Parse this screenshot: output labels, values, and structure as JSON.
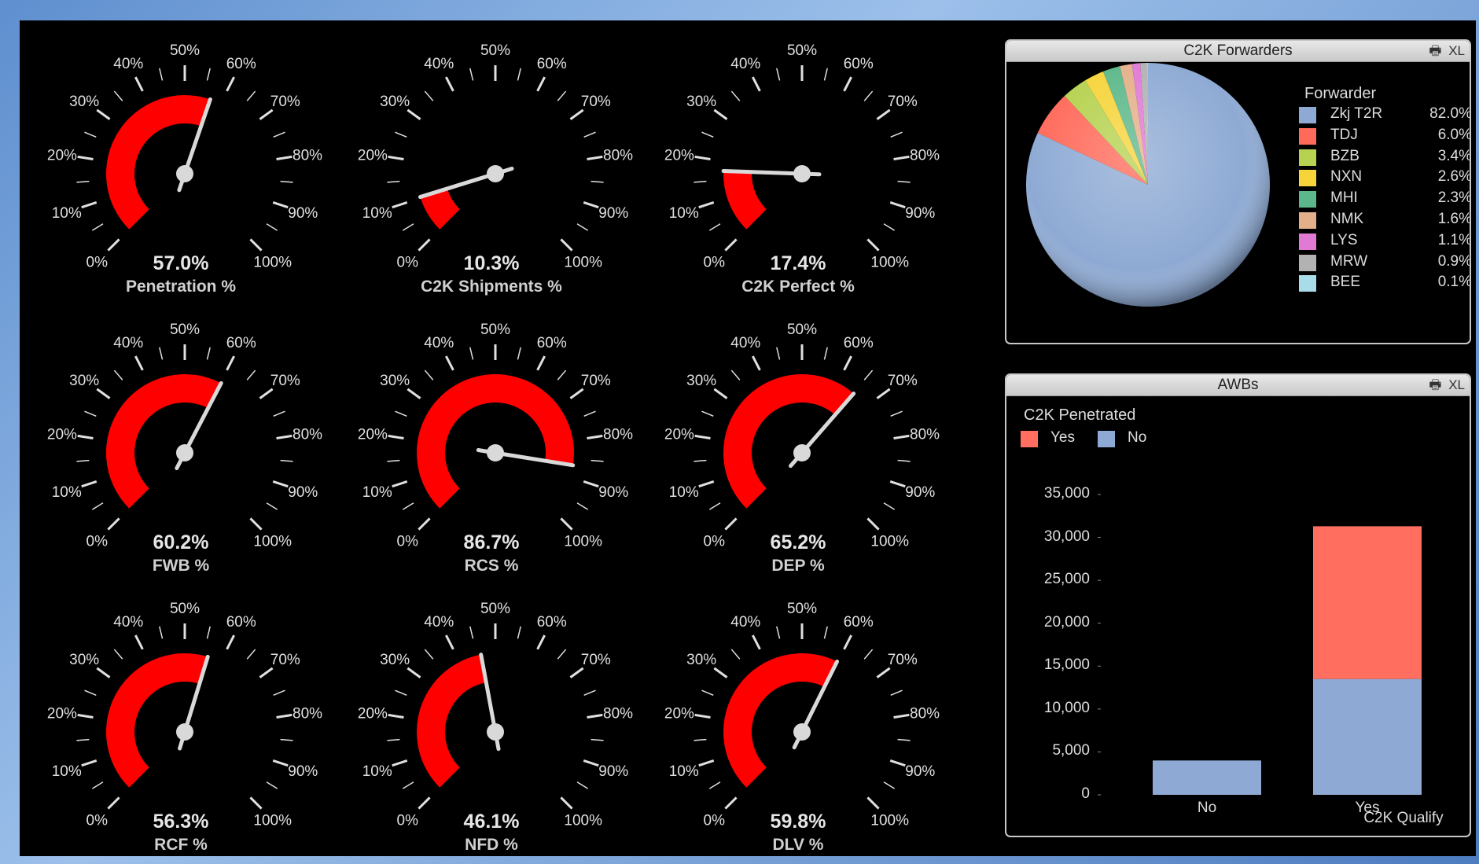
{
  "gauges": [
    {
      "name": "Penetration %",
      "value_text": "57.0%",
      "value": 57.0
    },
    {
      "name": "C2K Shipments %",
      "value_text": "10.3%",
      "value": 10.3
    },
    {
      "name": "C2K Perfect %",
      "value_text": "17.4%",
      "value": 17.4
    },
    {
      "name": "FWB %",
      "value_text": "60.2%",
      "value": 60.2
    },
    {
      "name": "RCS %",
      "value_text": "86.7%",
      "value": 86.7
    },
    {
      "name": "DEP %",
      "value_text": "65.2%",
      "value": 65.2
    },
    {
      "name": "RCF %",
      "value_text": "56.3%",
      "value": 56.3
    },
    {
      "name": "NFD %",
      "value_text": "46.1%",
      "value": 46.1
    },
    {
      "name": "DLV %",
      "value_text": "59.8%",
      "value": 59.8
    }
  ],
  "gauge_ticks": [
    "0%",
    "10%",
    "20%",
    "30%",
    "40%",
    "50%",
    "60%",
    "70%",
    "80%",
    "90%",
    "100%"
  ],
  "colors": {
    "gauge_fill": "#ff0000",
    "needle": "#d9d9d9",
    "background": "#000000"
  },
  "forwarders_panel": {
    "title": "C2K Forwarders",
    "icons": [
      "print-icon",
      "XL"
    ],
    "legend_title": "Forwarder",
    "items": [
      {
        "name": "Zkj T2R",
        "pct": "82.0%",
        "value": 82.0,
        "color": "#8eaad4"
      },
      {
        "name": "TDJ",
        "pct": "6.0%",
        "value": 6.0,
        "color": "#ff6a5a"
      },
      {
        "name": "BZB",
        "pct": "3.4%",
        "value": 3.4,
        "color": "#b6d250"
      },
      {
        "name": "NXN",
        "pct": "2.6%",
        "value": 2.6,
        "color": "#f6d43a"
      },
      {
        "name": "MHI",
        "pct": "2.3%",
        "value": 2.3,
        "color": "#5cb88a"
      },
      {
        "name": "NMK",
        "pct": "1.6%",
        "value": 1.6,
        "color": "#e4b08a"
      },
      {
        "name": "LYS",
        "pct": "1.1%",
        "value": 1.1,
        "color": "#e07ad4"
      },
      {
        "name": "MRW",
        "pct": "0.9%",
        "value": 0.9,
        "color": "#b2b2b2"
      },
      {
        "name": "BEE",
        "pct": "0.1%",
        "value": 0.1,
        "color": "#a8dce8"
      }
    ]
  },
  "awbs_panel": {
    "title": "AWBs",
    "icons": [
      "print-icon",
      "XL"
    ],
    "legend_title": "C2K Penetrated",
    "legend": [
      {
        "name": "Yes",
        "color": "#ff6e5e"
      },
      {
        "name": "No",
        "color": "#8eaad4"
      }
    ],
    "xlabel": "C2K Qualify"
  },
  "chart_data": [
    {
      "type": "pie",
      "title": "C2K Forwarders",
      "legend_title": "Forwarder",
      "categories": [
        "Zkj T2R",
        "TDJ",
        "BZB",
        "NXN",
        "MHI",
        "NMK",
        "LYS",
        "MRW",
        "BEE"
      ],
      "values": [
        82.0,
        6.0,
        3.4,
        2.6,
        2.3,
        1.6,
        1.1,
        0.9,
        0.1
      ]
    },
    {
      "type": "bar",
      "stacked": true,
      "title": "AWBs",
      "categories": [
        "No",
        "Yes"
      ],
      "series": [
        {
          "name": "No",
          "values": [
            4000,
            13500
          ]
        },
        {
          "name": "Yes",
          "values": [
            0,
            17800
          ]
        }
      ],
      "xlabel": "C2K Qualify",
      "ylabel": "",
      "ylim": [
        0,
        35000
      ],
      "yticks": [
        "0",
        "5,000",
        "10,000",
        "15,000",
        "20,000",
        "25,000",
        "30,000",
        "35,000"
      ]
    }
  ]
}
